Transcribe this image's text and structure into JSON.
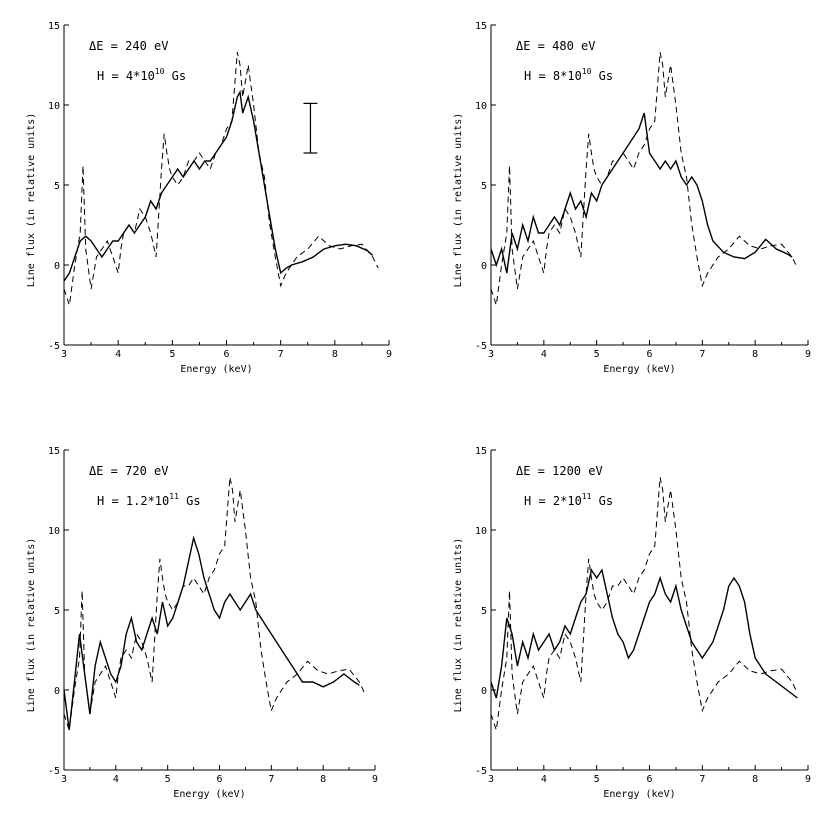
{
  "chart_data": [
    {
      "type": "line",
      "xlabel": "Energy (keV)",
      "ylabel": "Line flux (in relative units)",
      "xlim": [
        3,
        9
      ],
      "ylim": [
        -5,
        15
      ],
      "xticks": [
        "3",
        "4",
        "5",
        "6",
        "7",
        "8",
        "9"
      ],
      "yticks": [
        "-5",
        "0",
        "5",
        "10",
        "15"
      ],
      "annotations": {
        "dE_label": "ΔE  =  240   eV",
        "H_label": "H  =  4*10",
        "H_exp": "10",
        "H_unit": " Gs"
      },
      "error_bar": {
        "x": 7.55,
        "y_low": 7.0,
        "y_high": 10.1
      },
      "series": [
        {
          "style": "solid",
          "x": [
            3.0,
            3.1,
            3.2,
            3.3,
            3.4,
            3.5,
            3.6,
            3.7,
            3.8,
            3.9,
            4.0,
            4.1,
            4.2,
            4.3,
            4.4,
            4.5,
            4.6,
            4.7,
            4.8,
            4.9,
            5.0,
            5.1,
            5.2,
            5.3,
            5.4,
            5.5,
            5.6,
            5.7,
            5.8,
            5.9,
            6.0,
            6.1,
            6.2,
            6.25,
            6.3,
            6.4,
            6.5,
            6.6,
            6.7,
            6.8,
            6.9,
            7.0,
            7.1,
            7.2,
            7.4,
            7.6,
            7.8,
            8.0,
            8.2,
            8.4,
            8.6,
            8.7
          ],
          "y": [
            -1.0,
            -0.5,
            0.5,
            1.5,
            1.8,
            1.5,
            1.0,
            0.5,
            1.0,
            1.5,
            1.5,
            2.0,
            2.5,
            2.0,
            2.5,
            3.0,
            4.0,
            3.5,
            4.5,
            5.0,
            5.5,
            6.0,
            5.5,
            6.0,
            6.5,
            6.0,
            6.5,
            6.5,
            7.0,
            7.5,
            8.0,
            9.0,
            10.5,
            10.8,
            9.5,
            10.5,
            9.0,
            7.0,
            5.0,
            3.0,
            1.0,
            -0.5,
            -0.2,
            0.0,
            0.2,
            0.5,
            1.0,
            1.2,
            1.3,
            1.2,
            0.9,
            0.6
          ]
        },
        {
          "style": "dashed",
          "x": [
            3.0,
            3.1,
            3.2,
            3.3,
            3.35,
            3.4,
            3.5,
            3.55,
            3.6,
            3.7,
            3.8,
            3.9,
            4.0,
            4.05,
            4.1,
            4.2,
            4.3,
            4.4,
            4.5,
            4.6,
            4.7,
            4.8,
            4.85,
            4.9,
            4.95,
            5.0,
            5.1,
            5.2,
            5.3,
            5.4,
            5.5,
            5.6,
            5.7,
            5.8,
            5.9,
            6.0,
            6.1,
            6.2,
            6.25,
            6.3,
            6.4,
            6.5,
            6.6,
            6.7,
            6.8,
            6.9,
            7.0,
            7.1,
            7.3,
            7.5,
            7.7,
            7.9,
            8.1,
            8.3,
            8.5,
            8.7,
            8.8
          ],
          "y": [
            -1.5,
            -2.5,
            0.0,
            2.0,
            6.2,
            1.0,
            -1.5,
            -0.5,
            0.5,
            1.0,
            1.5,
            0.5,
            -0.5,
            1.0,
            2.0,
            2.5,
            2.0,
            3.5,
            3.0,
            2.0,
            0.5,
            6.0,
            8.2,
            7.0,
            6.0,
            5.5,
            5.0,
            5.5,
            6.5,
            6.5,
            7.0,
            6.5,
            6.0,
            7.0,
            7.5,
            8.5,
            9.0,
            13.3,
            12.5,
            10.5,
            12.5,
            10.0,
            7.0,
            5.5,
            2.5,
            0.5,
            -1.3,
            -0.5,
            0.5,
            1.0,
            1.8,
            1.2,
            1.0,
            1.2,
            1.3,
            0.5,
            -0.2
          ]
        }
      ]
    },
    {
      "type": "line",
      "xlabel": "Energy (keV)",
      "ylabel": "Line flux (in relative units)",
      "xlim": [
        3,
        9
      ],
      "ylim": [
        -5,
        15
      ],
      "xticks": [
        "3",
        "4",
        "5",
        "6",
        "7",
        "8",
        "9"
      ],
      "yticks": [
        "-5",
        "0",
        "5",
        "10",
        "15"
      ],
      "annotations": {
        "dE_label": "ΔE  =  480   eV",
        "H_label": "H  =  8*10",
        "H_exp": "10",
        "H_unit": " Gs"
      },
      "series": [
        {
          "style": "solid",
          "x": [
            3.0,
            3.1,
            3.2,
            3.3,
            3.4,
            3.5,
            3.6,
            3.7,
            3.8,
            3.9,
            4.0,
            4.1,
            4.2,
            4.3,
            4.4,
            4.5,
            4.6,
            4.7,
            4.8,
            4.9,
            5.0,
            5.1,
            5.2,
            5.3,
            5.4,
            5.5,
            5.6,
            5.7,
            5.8,
            5.9,
            6.0,
            6.1,
            6.2,
            6.3,
            6.4,
            6.5,
            6.6,
            6.7,
            6.8,
            6.9,
            7.0,
            7.1,
            7.2,
            7.4,
            7.6,
            7.8,
            8.0,
            8.2,
            8.4,
            8.6,
            8.7
          ],
          "y": [
            1.0,
            0.0,
            1.0,
            -0.5,
            2.0,
            1.0,
            2.5,
            1.5,
            3.0,
            2.0,
            2.0,
            2.5,
            3.0,
            2.5,
            3.5,
            4.5,
            3.5,
            4.0,
            3.0,
            4.5,
            4.0,
            5.0,
            5.5,
            6.0,
            6.5,
            7.0,
            7.5,
            8.0,
            8.5,
            9.5,
            7.0,
            6.5,
            6.0,
            6.5,
            6.0,
            6.5,
            5.5,
            5.0,
            5.5,
            5.0,
            4.0,
            2.5,
            1.5,
            0.8,
            0.5,
            0.4,
            0.8,
            1.6,
            1.0,
            0.7,
            0.5
          ]
        },
        {
          "style": "dashed",
          "x": [
            3.0,
            3.1,
            3.2,
            3.3,
            3.35,
            3.4,
            3.5,
            3.55,
            3.6,
            3.7,
            3.8,
            3.9,
            4.0,
            4.05,
            4.1,
            4.2,
            4.3,
            4.4,
            4.5,
            4.6,
            4.7,
            4.8,
            4.85,
            4.9,
            4.95,
            5.0,
            5.1,
            5.2,
            5.3,
            5.4,
            5.5,
            5.6,
            5.7,
            5.8,
            5.9,
            6.0,
            6.1,
            6.2,
            6.25,
            6.3,
            6.4,
            6.5,
            6.6,
            6.7,
            6.8,
            6.9,
            7.0,
            7.1,
            7.3,
            7.5,
            7.7,
            7.9,
            8.1,
            8.3,
            8.5,
            8.7,
            8.8
          ],
          "y": [
            -1.5,
            -2.5,
            0.0,
            2.0,
            6.2,
            1.0,
            -1.5,
            -0.5,
            0.5,
            1.0,
            1.5,
            0.5,
            -0.5,
            1.0,
            2.0,
            2.5,
            2.0,
            3.5,
            3.0,
            2.0,
            0.5,
            6.0,
            8.2,
            7.0,
            6.0,
            5.5,
            5.0,
            5.5,
            6.5,
            6.5,
            7.0,
            6.5,
            6.0,
            7.0,
            7.5,
            8.5,
            9.0,
            13.3,
            12.5,
            10.5,
            12.5,
            10.0,
            7.0,
            5.5,
            2.5,
            0.5,
            -1.3,
            -0.5,
            0.5,
            1.0,
            1.8,
            1.2,
            1.0,
            1.2,
            1.3,
            0.5,
            -0.2
          ]
        }
      ]
    },
    {
      "type": "line",
      "xlabel": "Energy (keV)",
      "ylabel": "Line flux (in relative units)",
      "xlim": [
        3,
        9
      ],
      "ylim": [
        -5,
        15
      ],
      "xticks": [
        "3",
        "4",
        "5",
        "6",
        "7",
        "8",
        "9"
      ],
      "yticks": [
        "-5",
        "0",
        "5",
        "10",
        "15"
      ],
      "annotations": {
        "dE_label": "ΔE  =  720   eV",
        "H_label": "H  =  1.2*10",
        "H_exp": "11",
        "H_unit": " Gs"
      },
      "series": [
        {
          "style": "solid",
          "x": [
            3.0,
            3.1,
            3.2,
            3.3,
            3.4,
            3.5,
            3.6,
            3.7,
            3.8,
            3.9,
            4.0,
            4.1,
            4.2,
            4.3,
            4.4,
            4.5,
            4.6,
            4.7,
            4.8,
            4.9,
            5.0,
            5.1,
            5.2,
            5.3,
            5.4,
            5.5,
            5.6,
            5.7,
            5.8,
            5.9,
            6.0,
            6.1,
            6.2,
            6.3,
            6.4,
            6.5,
            6.6,
            6.7,
            6.8,
            6.9,
            7.0,
            7.1,
            7.2,
            7.3,
            7.4,
            7.5,
            7.6,
            7.8,
            8.0,
            8.2,
            8.4,
            8.6,
            8.7
          ],
          "y": [
            0.0,
            -2.5,
            0.5,
            3.5,
            1.0,
            -1.5,
            1.5,
            3.0,
            2.0,
            1.0,
            0.5,
            1.5,
            3.5,
            4.5,
            3.0,
            2.5,
            3.5,
            4.5,
            3.5,
            5.5,
            4.0,
            4.5,
            5.5,
            6.5,
            8.0,
            9.5,
            8.5,
            7.0,
            6.0,
            5.0,
            4.5,
            5.5,
            6.0,
            5.5,
            5.0,
            5.5,
            6.0,
            5.0,
            4.5,
            4.0,
            3.5,
            3.0,
            2.5,
            2.0,
            1.5,
            1.0,
            0.5,
            0.5,
            0.2,
            0.5,
            1.0,
            0.5,
            0.3
          ]
        },
        {
          "style": "dashed",
          "x": [
            3.0,
            3.1,
            3.2,
            3.3,
            3.35,
            3.4,
            3.5,
            3.55,
            3.6,
            3.7,
            3.8,
            3.9,
            4.0,
            4.05,
            4.1,
            4.2,
            4.3,
            4.4,
            4.5,
            4.6,
            4.7,
            4.8,
            4.85,
            4.9,
            4.95,
            5.0,
            5.1,
            5.2,
            5.3,
            5.4,
            5.5,
            5.6,
            5.7,
            5.8,
            5.9,
            6.0,
            6.1,
            6.2,
            6.25,
            6.3,
            6.4,
            6.5,
            6.6,
            6.7,
            6.8,
            6.9,
            7.0,
            7.1,
            7.3,
            7.5,
            7.7,
            7.9,
            8.1,
            8.3,
            8.5,
            8.7,
            8.8
          ],
          "y": [
            -1.5,
            -2.5,
            0.0,
            2.0,
            6.2,
            1.0,
            -1.5,
            -0.5,
            0.5,
            1.0,
            1.5,
            0.5,
            -0.5,
            1.0,
            2.0,
            2.5,
            2.0,
            3.5,
            3.0,
            2.0,
            0.5,
            6.0,
            8.2,
            7.0,
            6.0,
            5.5,
            5.0,
            5.5,
            6.5,
            6.5,
            7.0,
            6.5,
            6.0,
            7.0,
            7.5,
            8.5,
            9.0,
            13.3,
            12.5,
            10.5,
            12.5,
            10.0,
            7.0,
            5.5,
            2.5,
            0.5,
            -1.3,
            -0.5,
            0.5,
            1.0,
            1.8,
            1.2,
            1.0,
            1.2,
            1.3,
            0.5,
            -0.2
          ]
        }
      ]
    },
    {
      "type": "line",
      "xlabel": "Energy (keV)",
      "ylabel": "Line flux (in relative units)",
      "xlim": [
        3,
        9
      ],
      "ylim": [
        -5,
        15
      ],
      "xticks": [
        "3",
        "4",
        "5",
        "6",
        "7",
        "8",
        "9"
      ],
      "yticks": [
        "-5",
        "0",
        "5",
        "10",
        "15"
      ],
      "annotations": {
        "dE_label": "ΔE  =  1200   eV",
        "H_label": "H  =  2*10",
        "H_exp": "11",
        "H_unit": " Gs"
      },
      "series": [
        {
          "style": "solid",
          "x": [
            3.0,
            3.1,
            3.2,
            3.3,
            3.4,
            3.5,
            3.6,
            3.7,
            3.8,
            3.9,
            4.0,
            4.1,
            4.2,
            4.3,
            4.4,
            4.5,
            4.6,
            4.7,
            4.8,
            4.9,
            5.0,
            5.1,
            5.2,
            5.3,
            5.4,
            5.5,
            5.6,
            5.7,
            5.8,
            5.9,
            6.0,
            6.1,
            6.2,
            6.3,
            6.4,
            6.5,
            6.6,
            6.7,
            6.8,
            6.9,
            7.0,
            7.1,
            7.2,
            7.3,
            7.4,
            7.5,
            7.6,
            7.7,
            7.8,
            7.9,
            8.0,
            8.2,
            8.4,
            8.6,
            8.8
          ],
          "y": [
            0.5,
            -0.5,
            1.5,
            4.5,
            3.5,
            1.5,
            3.0,
            2.0,
            3.5,
            2.5,
            3.0,
            3.5,
            2.5,
            3.0,
            4.0,
            3.5,
            4.5,
            5.5,
            6.0,
            7.5,
            7.0,
            7.5,
            6.0,
            4.5,
            3.5,
            3.0,
            2.0,
            2.5,
            3.5,
            4.5,
            5.5,
            6.0,
            7.0,
            6.0,
            5.5,
            6.5,
            5.0,
            4.0,
            3.0,
            2.5,
            2.0,
            2.5,
            3.0,
            4.0,
            5.0,
            6.5,
            7.0,
            6.5,
            5.5,
            3.5,
            2.0,
            1.0,
            0.5,
            0.0,
            -0.5
          ]
        },
        {
          "style": "dashed",
          "x": [
            3.0,
            3.1,
            3.2,
            3.3,
            3.35,
            3.4,
            3.5,
            3.55,
            3.6,
            3.7,
            3.8,
            3.9,
            4.0,
            4.05,
            4.1,
            4.2,
            4.3,
            4.4,
            4.5,
            4.6,
            4.7,
            4.8,
            4.85,
            4.9,
            4.95,
            5.0,
            5.1,
            5.2,
            5.3,
            5.4,
            5.5,
            5.6,
            5.7,
            5.8,
            5.9,
            6.0,
            6.1,
            6.2,
            6.25,
            6.3,
            6.4,
            6.5,
            6.6,
            6.7,
            6.8,
            6.9,
            7.0,
            7.1,
            7.3,
            7.5,
            7.7,
            7.9,
            8.1,
            8.3,
            8.5,
            8.7,
            8.8
          ],
          "y": [
            -1.5,
            -2.5,
            0.0,
            2.0,
            6.2,
            1.0,
            -1.5,
            -0.5,
            0.5,
            1.0,
            1.5,
            0.5,
            -0.5,
            1.0,
            2.0,
            2.5,
            2.0,
            3.5,
            3.0,
            2.0,
            0.5,
            6.0,
            8.2,
            7.0,
            6.0,
            5.5,
            5.0,
            5.5,
            6.5,
            6.5,
            7.0,
            6.5,
            6.0,
            7.0,
            7.5,
            8.5,
            9.0,
            13.3,
            12.5,
            10.5,
            12.5,
            10.0,
            7.0,
            5.5,
            2.5,
            0.5,
            -1.3,
            -0.5,
            0.5,
            1.0,
            1.8,
            1.2,
            1.0,
            1.2,
            1.3,
            0.5,
            -0.2
          ]
        }
      ]
    }
  ]
}
